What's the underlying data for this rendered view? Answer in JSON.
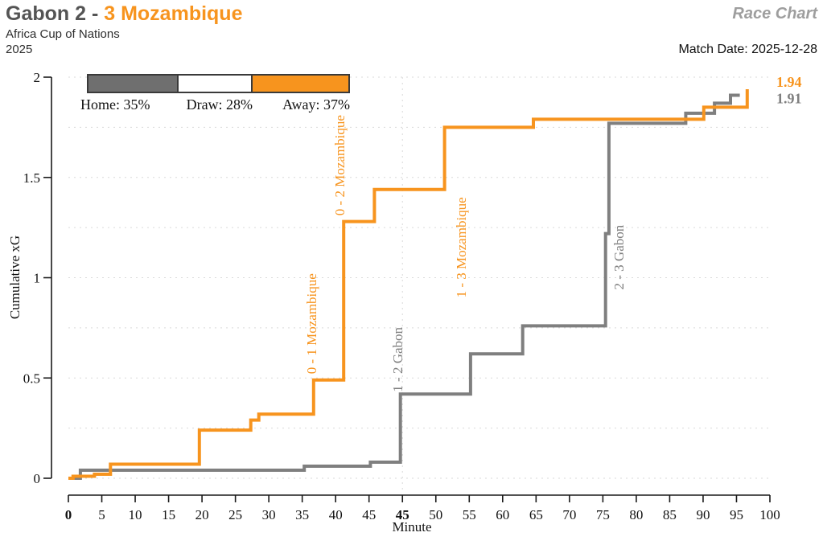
{
  "header": {
    "title_home": "Gabon 2 - ",
    "title_away": "3 Mozambique",
    "competition": "Africa Cup of Nations",
    "season": "2025",
    "watermark": "Race Chart",
    "match_date": "Match Date: 2025-12-28"
  },
  "colors": {
    "title_home": "#545454",
    "title_away": "#F7941E",
    "watermark": "#9E9E9E",
    "text": "#111111",
    "axis": "#1A1A1A",
    "grid": "#D9D9D9",
    "home_line": "#7F7F7F",
    "away_line": "#F7941E"
  },
  "legend": {
    "items": [
      {
        "label": "Home: 35%",
        "pct": 35,
        "color": "#6F6F6F"
      },
      {
        "label": "Draw: 28%",
        "pct": 28,
        "color": "#FFFFFF"
      },
      {
        "label": "Away: 37%",
        "pct": 37,
        "color": "#F7941E"
      }
    ]
  },
  "chart_data": {
    "type": "line",
    "subtype": "step-after-cumulative-xg-race",
    "xlabel": "Minute",
    "ylabel": "Cumulative xG",
    "ylim": [
      0,
      2
    ],
    "y_ticks": [
      "0",
      "0.5",
      "1",
      "1.5",
      "2"
    ],
    "y_grid_step": 0.25,
    "x_tick_labels": [
      "0",
      "5",
      "10",
      "15",
      "20",
      "25",
      "30",
      "35",
      "40",
      "45",
      "45",
      "50",
      "55",
      "60",
      "65",
      "70",
      "75",
      "80",
      "85",
      "90",
      "95",
      "100"
    ],
    "x_tick_bold_indexes": [
      0,
      10
    ],
    "x_tick_step_units": 5,
    "x_axis_units_total": 105,
    "halftime_u": 50,
    "grid": "dotted",
    "series": [
      {
        "key": "home",
        "name": "Gabon",
        "color": "#7F7F7F",
        "end_label": "1.91",
        "end_label_dy": 10,
        "points": [
          [
            0,
            0
          ],
          [
            1.8,
            0.04
          ],
          [
            35.3,
            0.06
          ],
          [
            45.2,
            0.08
          ],
          [
            49.7,
            0.42
          ],
          [
            60.2,
            0.62
          ],
          [
            68,
            0.76
          ],
          [
            80.4,
            1.22
          ],
          [
            80.9,
            1.77
          ],
          [
            92.4,
            1.82
          ],
          [
            96.7,
            1.87
          ],
          [
            99.1,
            1.91
          ],
          [
            100.5,
            1.91
          ]
        ]
      },
      {
        "key": "away",
        "name": "Mozambique",
        "color": "#F7941E",
        "end_label": "1.94",
        "end_label_dy": -3,
        "points": [
          [
            0,
            0
          ],
          [
            0.7,
            0.01
          ],
          [
            3.9,
            0.02
          ],
          [
            6.3,
            0.07
          ],
          [
            19.6,
            0.24
          ],
          [
            27.3,
            0.29
          ],
          [
            28.5,
            0.32
          ],
          [
            36.7,
            0.49
          ],
          [
            41.2,
            1.28
          ],
          [
            45.8,
            1.44
          ],
          [
            56.3,
            1.75
          ],
          [
            69.6,
            1.79
          ],
          [
            95.1,
            1.85
          ],
          [
            101.6,
            1.94
          ]
        ]
      }
    ],
    "annotations": [
      {
        "text": "0 - 1 Mozambique",
        "color": "#F7941E",
        "u": 37.1,
        "y_bottom": 0.52
      },
      {
        "text": "0 - 2 Mozambique",
        "color": "#F7941E",
        "u": 41.3,
        "y_bottom": 1.31
      },
      {
        "text": "1 - 2 Gabon",
        "color": "#7F7F7F",
        "u": 50.0,
        "y_bottom": 0.43
      },
      {
        "text": "1 - 3 Mozambique",
        "color": "#F7941E",
        "u": 59.5,
        "y_bottom": 0.9
      },
      {
        "text": "2 - 3 Gabon",
        "color": "#7F7F7F",
        "u": 83.1,
        "y_bottom": 0.94
      }
    ]
  }
}
